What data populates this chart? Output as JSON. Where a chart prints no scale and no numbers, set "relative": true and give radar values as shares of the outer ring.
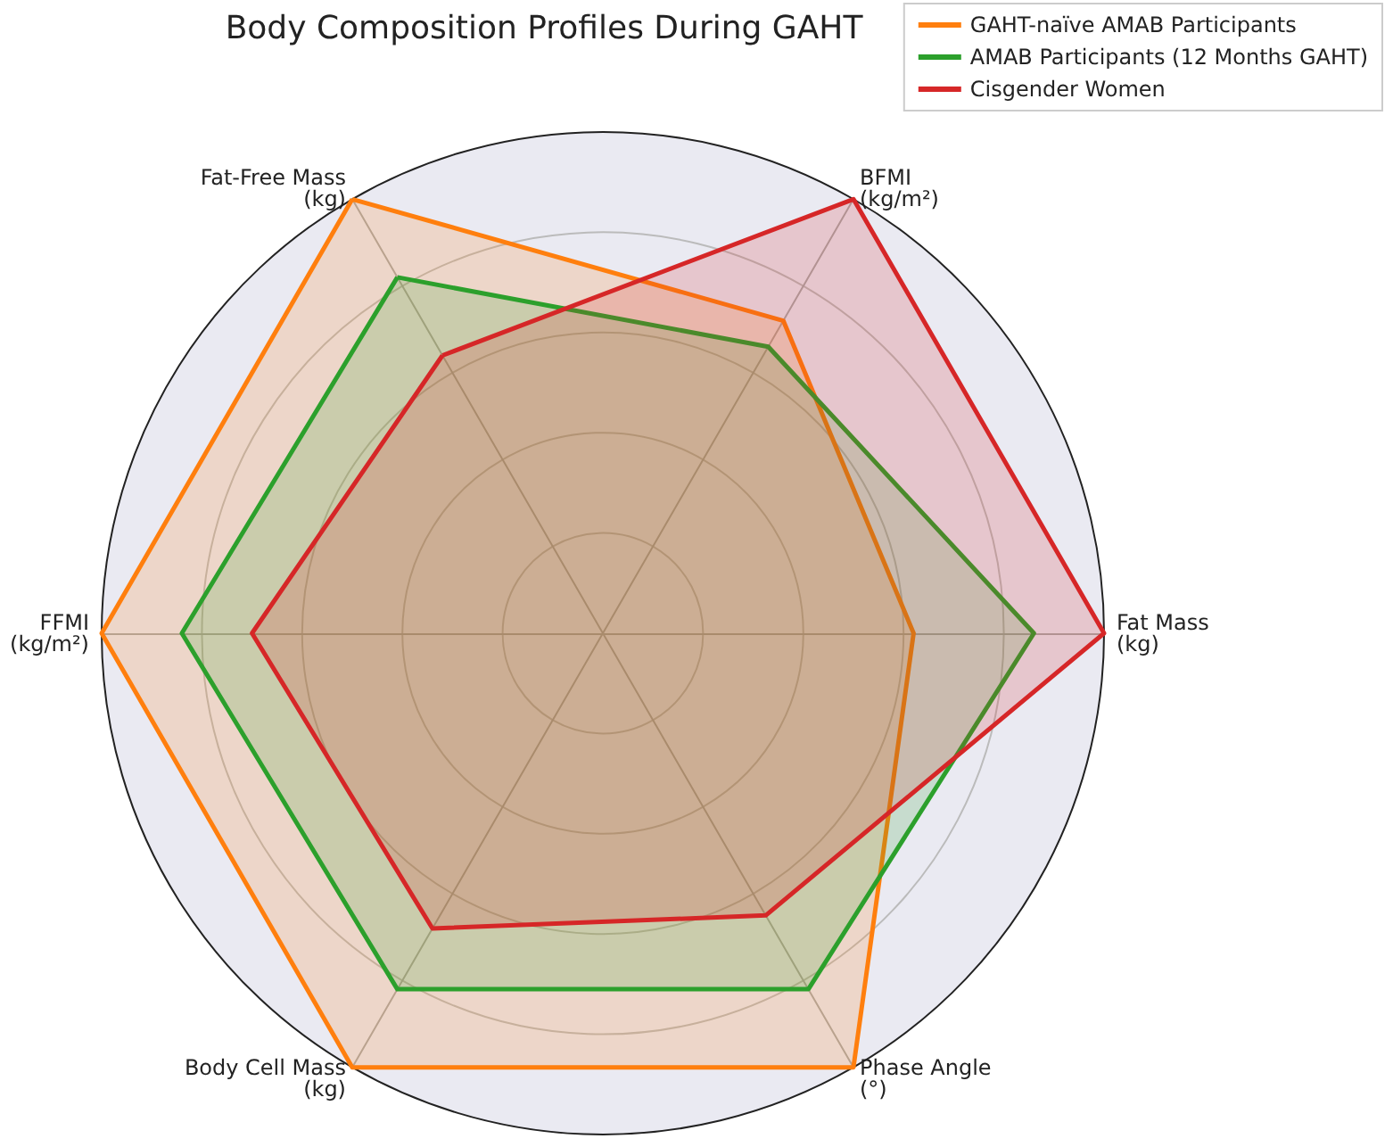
{
  "chart_data": {
    "type": "radar",
    "title": "Body Composition Profiles During GAHT",
    "relative": true,
    "grid": true,
    "legend": "top right",
    "marker": "none",
    "categories": [
      "BFMI\n(kg/m²)",
      "Fat Mass\n(kg)",
      "Phase Angle\n(°)",
      "Body Cell Mass\n(kg)",
      "FFMI\n(kg/m²)",
      "Fat-Free Mass\n(kg)"
    ],
    "series": [
      {
        "name": "GAHT-naïve AMAB Participants",
        "color": "#ff7f0e",
        "values": [
          0.72,
          0.62,
          1.0,
          1.0,
          1.0,
          1.0
        ]
      },
      {
        "name": "AMAB Participants (12 Months GAHT)",
        "color": "#2ca02c",
        "values": [
          0.66,
          0.86,
          0.82,
          0.82,
          0.84,
          0.82
        ]
      },
      {
        "name": "Cisgender Women",
        "color": "#d62728",
        "values": [
          1.0,
          1.0,
          0.65,
          0.68,
          0.7,
          0.64
        ]
      }
    ]
  }
}
